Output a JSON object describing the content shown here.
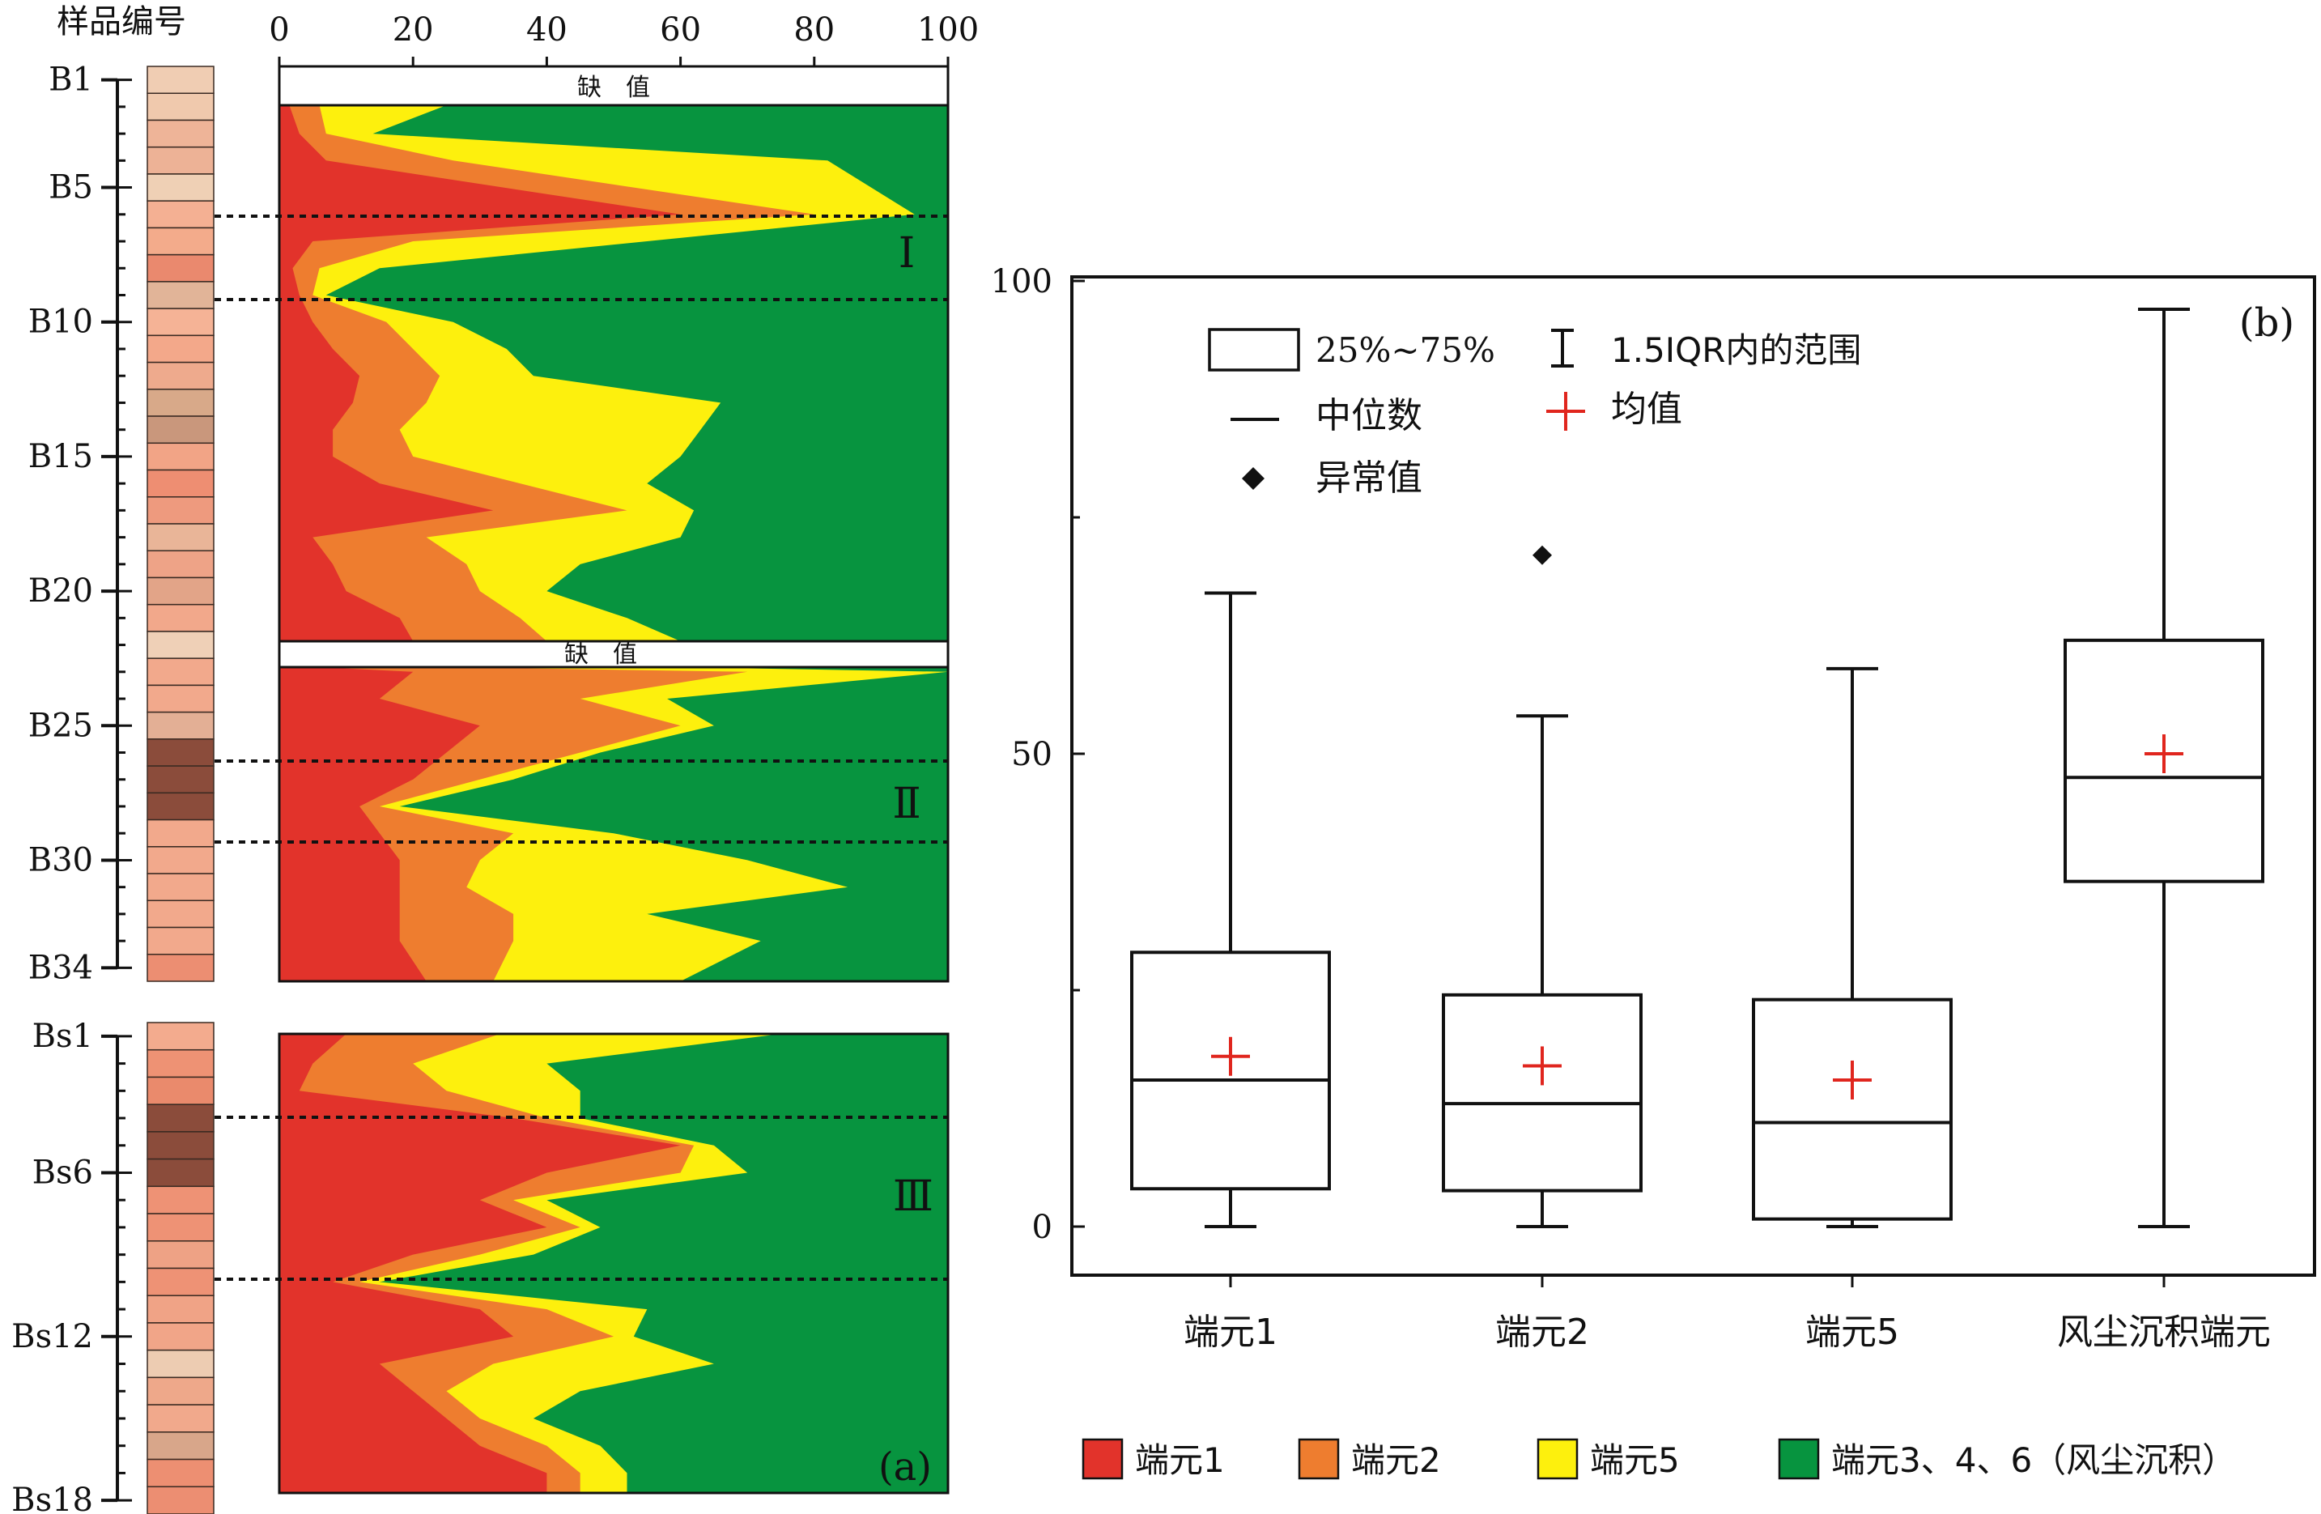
{
  "colors": {
    "endmember1": "#e2332b",
    "endmember2": "#ee7d2f",
    "endmember5": "#fdf00d",
    "aeolian": "#07943f",
    "mean_marker": "#e0261e",
    "missing_fill": "#ffffff"
  },
  "panel_a": {
    "label": "(a)",
    "column_header": "样品编号",
    "missing_label": "缺　值",
    "zone_labels": [
      "Ⅰ",
      "Ⅱ",
      "Ⅲ"
    ],
    "axis_ticks": [
      "0",
      "20",
      "40",
      "60",
      "80",
      "100"
    ],
    "axis_range": [
      0,
      100
    ],
    "section_b_labels": [
      {
        "label": "B1",
        "sample": 1
      },
      {
        "label": "B5",
        "sample": 5
      },
      {
        "label": "B10",
        "sample": 10
      },
      {
        "label": "B15",
        "sample": 15
      },
      {
        "label": "B20",
        "sample": 20
      },
      {
        "label": "B25",
        "sample": 25
      },
      {
        "label": "B30",
        "sample": 30
      },
      {
        "label": "B34",
        "sample": 34
      }
    ],
    "section_bs_labels": [
      {
        "label": "Bs1",
        "sample": 1
      },
      {
        "label": "Bs6",
        "sample": 6
      },
      {
        "label": "Bs12",
        "sample": 12
      },
      {
        "label": "Bs18",
        "sample": 18
      }
    ],
    "b_colors": [
      "#f0cdb3",
      "#f0c9ad",
      "#eeb498",
      "#edb296",
      "#efd0b5",
      "#f4b093",
      "#f3ab8b",
      "#ea896e",
      "#e1b498",
      "#f5b396",
      "#f3a88a",
      "#eeaa8d",
      "#d8a989",
      "#c9977c",
      "#f2a486",
      "#ee8e72",
      "#ee9a7e",
      "#e9b598",
      "#eea387",
      "#e2a488",
      "#f2a88b",
      "#efd0b7",
      "#f2a98c",
      "#f2a98c",
      "#e3af95",
      "#8b4c3b",
      "#8b4c3b",
      "#8b4c3b",
      "#f2a98c",
      "#f2a98c",
      "#f2a98c",
      "#f2a98c",
      "#f2a98c",
      "#ec8e72"
    ],
    "bs_colors": [
      "#f3ab8e",
      "#ee9274",
      "#ea8a6c",
      "#8b4c3b",
      "#8b4c3b",
      "#8b4c3b",
      "#ee9275",
      "#ee9275",
      "#eea285",
      "#ee9275",
      "#f0a386",
      "#f1a588",
      "#edccb2",
      "#eea88a",
      "#f1a98c",
      "#d8a68a",
      "#ed8f72",
      "#ec8e72"
    ],
    "profile_b1": [
      [
        1,
        1.5,
        6,
        25
      ],
      [
        3,
        3,
        7,
        14
      ],
      [
        4,
        7,
        26,
        82
      ],
      [
        6,
        60,
        80,
        95
      ],
      [
        7,
        5,
        20,
        55
      ],
      [
        8,
        2,
        6,
        15
      ],
      [
        9,
        3,
        5,
        7
      ],
      [
        10,
        5,
        16,
        26
      ],
      [
        11,
        8,
        20,
        34
      ],
      [
        12,
        12,
        24,
        38
      ],
      [
        13,
        11,
        22,
        66
      ],
      [
        14,
        8,
        18,
        63
      ],
      [
        15,
        8,
        20,
        60
      ],
      [
        16,
        15,
        36,
        55
      ],
      [
        17,
        32,
        52,
        62
      ],
      [
        18,
        5,
        22,
        60
      ],
      [
        19,
        8,
        28,
        45
      ],
      [
        20,
        10,
        30,
        40
      ],
      [
        21,
        18,
        36,
        52
      ],
      [
        22,
        20,
        40,
        60
      ]
    ],
    "profile_b2": [
      [
        22.5,
        6,
        26,
        60
      ],
      [
        23,
        20,
        70,
        100
      ],
      [
        24,
        15,
        45,
        58
      ],
      [
        25,
        30,
        60,
        65
      ],
      [
        26,
        25,
        45,
        48
      ],
      [
        27,
        20,
        30,
        35
      ],
      [
        28,
        12,
        15,
        18
      ],
      [
        29,
        15,
        35,
        50
      ],
      [
        30,
        18,
        30,
        70
      ],
      [
        31,
        18,
        28,
        85
      ],
      [
        32,
        18,
        35,
        55
      ],
      [
        33,
        18,
        35,
        72
      ],
      [
        34,
        22,
        32,
        60
      ]
    ],
    "profile_bs": [
      [
        1,
        10,
        33,
        75
      ],
      [
        2,
        5,
        20,
        40
      ],
      [
        3,
        3,
        25,
        45
      ],
      [
        4,
        35,
        40,
        45
      ],
      [
        5,
        60,
        62,
        65
      ],
      [
        6,
        40,
        60,
        70
      ],
      [
        7,
        30,
        35,
        40
      ],
      [
        8,
        40,
        45,
        48
      ],
      [
        9,
        20,
        30,
        38
      ],
      [
        10,
        8,
        12,
        15
      ],
      [
        11,
        30,
        40,
        55
      ],
      [
        12,
        35,
        50,
        53
      ],
      [
        13,
        15,
        32,
        65
      ],
      [
        14,
        20,
        25,
        45
      ],
      [
        15,
        25,
        30,
        38
      ],
      [
        16,
        30,
        40,
        48
      ],
      [
        17,
        40,
        45,
        52
      ],
      [
        18,
        40,
        45,
        52
      ]
    ],
    "legend": [
      {
        "label": "端元1",
        "color": "#e2332b"
      },
      {
        "label": "端元2",
        "color": "#ee7d2f"
      },
      {
        "label": "端元5",
        "color": "#fdf00d"
      },
      {
        "label": "端元3、4、6（风尘沉积）",
        "color": "#07943f"
      }
    ]
  },
  "chart_data": {
    "type": "boxplot",
    "panel_label": "(b)",
    "categories": [
      "端元1",
      "端元2",
      "端元5",
      "风尘沉积端元"
    ],
    "ylim": [
      -5,
      100
    ],
    "yticks": [
      "0",
      "50",
      "100"
    ],
    "boxes": [
      {
        "name": "端元1",
        "min": 0,
        "q1": 4,
        "median": 15.5,
        "q3": 29,
        "max": 67,
        "mean": 18,
        "outliers": []
      },
      {
        "name": "端元2",
        "min": 0,
        "q1": 3.8,
        "median": 13,
        "q3": 24.5,
        "max": 54,
        "mean": 17,
        "outliers": [
          71
        ]
      },
      {
        "name": "端元5",
        "min": 0,
        "q1": 0.8,
        "median": 11,
        "q3": 24,
        "max": 59,
        "mean": 15.5,
        "outliers": []
      },
      {
        "name": "风尘沉积端元",
        "min": 0,
        "q1": 36.5,
        "median": 47.5,
        "q3": 62,
        "max": 97,
        "mean": 50,
        "outliers": []
      }
    ],
    "legend": {
      "box": "25%~75%",
      "whisker": "1.5IQR内的范围",
      "median": "中位数",
      "mean": "均值",
      "outlier": "异常值"
    }
  }
}
